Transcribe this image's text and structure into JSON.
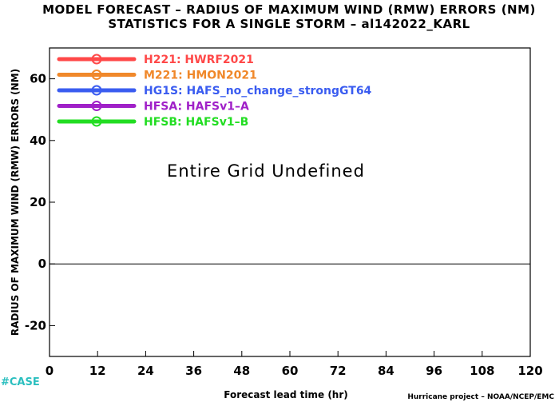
{
  "chart_data": {
    "type": "line",
    "title": "MODEL FORECAST – RADIUS OF MAXIMUM WIND (RMW) ERRORS (NM)",
    "subtitle": "STATISTICS FOR A SINGLE STORM – al142022_KARL",
    "xlabel": "Forecast lead time (hr)",
    "ylabel": "RADIUS OF MAXIMUM WIND (RMW) ERRORS (NM)",
    "xlim": [
      0,
      120
    ],
    "ylim": [
      -30,
      70
    ],
    "xticks": [
      0,
      12,
      24,
      36,
      48,
      60,
      72,
      84,
      96,
      108,
      120
    ],
    "yticks": [
      -20,
      0,
      20,
      40,
      60
    ],
    "reference_line_y": 0,
    "grid": false,
    "legend_position": "top-left",
    "annotation": "Entire Grid Undefined",
    "series": [
      {
        "name": "H221:  HWRF2021",
        "color": "#ff4848",
        "values": []
      },
      {
        "name": "M221:  HMON2021",
        "color": "#f0882a",
        "values": []
      },
      {
        "name": "HG1S:  HAFS_no_change_strongGT64",
        "color": "#3a5cf0",
        "values": []
      },
      {
        "name": "HFSA:  HAFSv1–A",
        "color": "#a020c8",
        "values": []
      },
      {
        "name": "HFSB:  HAFSv1–B",
        "color": "#22dd22",
        "values": []
      }
    ]
  },
  "footer": {
    "case_label": "#CASE",
    "credit": "Hurricane project – NOAA/NCEP/EMC"
  }
}
